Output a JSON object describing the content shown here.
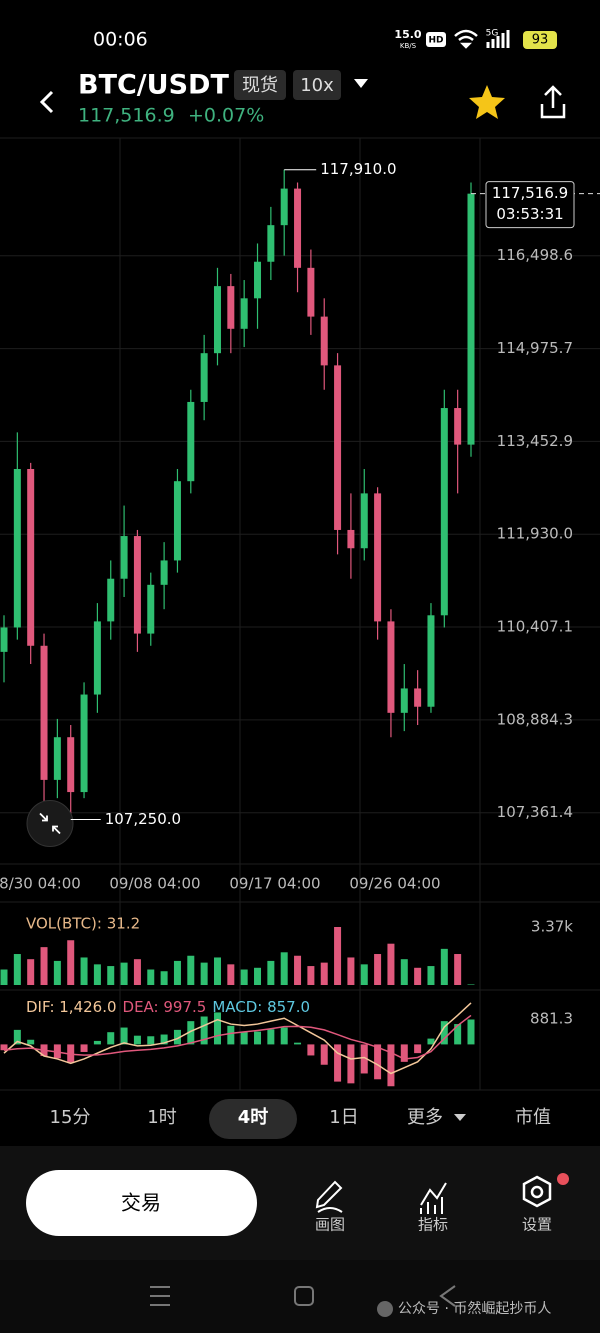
{
  "status_bar": {
    "time": "00:06",
    "net_speed": "15.0",
    "net_unit": "KB/S",
    "hd": "HD",
    "signal": "5G",
    "battery": "93"
  },
  "header": {
    "pair": "BTC/USDT",
    "market": "现货",
    "leverage": "10x",
    "price": "117,516.9",
    "change": "+0.07%"
  },
  "chart_data": {
    "type": "candlestick",
    "up_color": "#2fbf71",
    "down_color": "#e0587c",
    "open": [
      110000,
      110400,
      113000,
      110100,
      107900,
      108600,
      107700,
      109300,
      110500,
      111200,
      111900,
      110300,
      111100,
      111500,
      112800,
      114100,
      114900,
      116000,
      115300,
      115800,
      116400,
      117000,
      117600,
      116300,
      115500,
      114700,
      112000,
      111700,
      112600,
      110500,
      109000,
      109400,
      109100,
      110600,
      114000,
      113400
    ],
    "high": [
      110600,
      113600,
      113100,
      110300,
      108900,
      108800,
      109500,
      110800,
      111500,
      112400,
      112000,
      111300,
      111800,
      113000,
      114300,
      115200,
      116300,
      116200,
      116100,
      116700,
      117300,
      117910,
      117700,
      116600,
      115800,
      114900,
      112600,
      113000,
      112700,
      110700,
      109800,
      109700,
      110800,
      114300,
      114300,
      117700
    ],
    "low": [
      109500,
      110200,
      109800,
      107500,
      107600,
      107250,
      107600,
      109000,
      110200,
      110900,
      110000,
      110100,
      110700,
      111300,
      112600,
      113800,
      114700,
      114900,
      115000,
      115300,
      116100,
      116500,
      115900,
      115200,
      114300,
      111600,
      111200,
      111500,
      110200,
      108600,
      108700,
      108800,
      109000,
      110400,
      112600,
      113200
    ],
    "close": [
      110400,
      113000,
      110100,
      107900,
      108600,
      107700,
      109300,
      110500,
      111200,
      111900,
      110300,
      111100,
      111500,
      112800,
      114100,
      114900,
      116000,
      115300,
      115800,
      116400,
      117000,
      117600,
      116300,
      115500,
      114700,
      112000,
      111700,
      112600,
      110500,
      109000,
      109400,
      109100,
      110600,
      114000,
      113400,
      117516.9
    ],
    "ylim": [
      106520,
      118430
    ],
    "yticks": [
      {
        "value": 116498.6,
        "label": "116,498.6"
      },
      {
        "value": 114975.7,
        "label": "114,975.7"
      },
      {
        "value": 113452.9,
        "label": "113,452.9"
      },
      {
        "value": 111930.0,
        "label": "111,930.0"
      },
      {
        "value": 110407.1,
        "label": "110,407.1"
      },
      {
        "value": 108884.3,
        "label": "108,884.3"
      },
      {
        "value": 107361.4,
        "label": "107,361.4"
      }
    ],
    "x_labels": [
      "8/30 04:00",
      "09/08 04:00",
      "09/17 04:00",
      "09/26 04:00"
    ],
    "high_label": "117,910.0",
    "low_label": "107,250.0",
    "last_price_label": "117,516.9",
    "countdown": "03:53:31",
    "volume": {
      "label": "VOL(BTC): 31.2",
      "values": [
        900,
        1800,
        1500,
        2200,
        1400,
        2600,
        1600,
        1200,
        1100,
        1300,
        1500,
        900,
        800,
        1400,
        1700,
        1300,
        1600,
        1200,
        900,
        1000,
        1400,
        1900,
        1700,
        1100,
        1300,
        3370,
        1600,
        1200,
        1800,
        2400,
        1500,
        1000,
        1100,
        2100,
        1800,
        31.2
      ],
      "ylim": [
        0,
        3370
      ],
      "yticks": [
        {
          "value": 3370,
          "label": "3.37k"
        }
      ]
    },
    "macd": {
      "dif_label": "DIF: 1,426.0",
      "dea_label": "DEA: 997.5",
      "macd_label": "MACD: 857.0",
      "dif_color": "#f3c79a",
      "dea_color": "#e0587c",
      "dif": [
        -300,
        100,
        -50,
        -400,
        -500,
        -650,
        -500,
        -300,
        -100,
        50,
        -50,
        -30,
        50,
        200,
        450,
        650,
        850,
        700,
        650,
        700,
        800,
        900,
        650,
        400,
        150,
        -300,
        -500,
        -450,
        -700,
        -1000,
        -800,
        -600,
        -150,
        600,
        1000,
        1426
      ],
      "dea": [
        -200,
        -150,
        -130,
        -200,
        -260,
        -340,
        -370,
        -360,
        -310,
        -240,
        -200,
        -170,
        -120,
        -50,
        50,
        170,
        300,
        380,
        430,
        480,
        540,
        610,
        620,
        590,
        500,
        340,
        170,
        50,
        -100,
        -280,
        -500,
        -450,
        -250,
        200,
        650,
        997.5
      ],
      "hist": [
        -200,
        500,
        160,
        -400,
        -480,
        -620,
        -260,
        120,
        420,
        580,
        300,
        280,
        340,
        500,
        800,
        960,
        1100,
        640,
        440,
        440,
        520,
        580,
        60,
        -380,
        -700,
        -1280,
        -1340,
        -1000,
        -1200,
        -1440,
        -600,
        -300,
        200,
        800,
        700,
        857
      ],
      "ylim": [
        -1500,
        1700
      ],
      "yticks": [
        881.3
      ]
    }
  },
  "timeframes": {
    "items": [
      "15分",
      "1时",
      "4时",
      "1日",
      "更多",
      "市值"
    ],
    "selected": 2
  },
  "actions": {
    "trade": "交易",
    "tools": [
      "画图",
      "指标",
      "设置"
    ]
  },
  "watermark": "公众号 · 币然崛起抄币人"
}
